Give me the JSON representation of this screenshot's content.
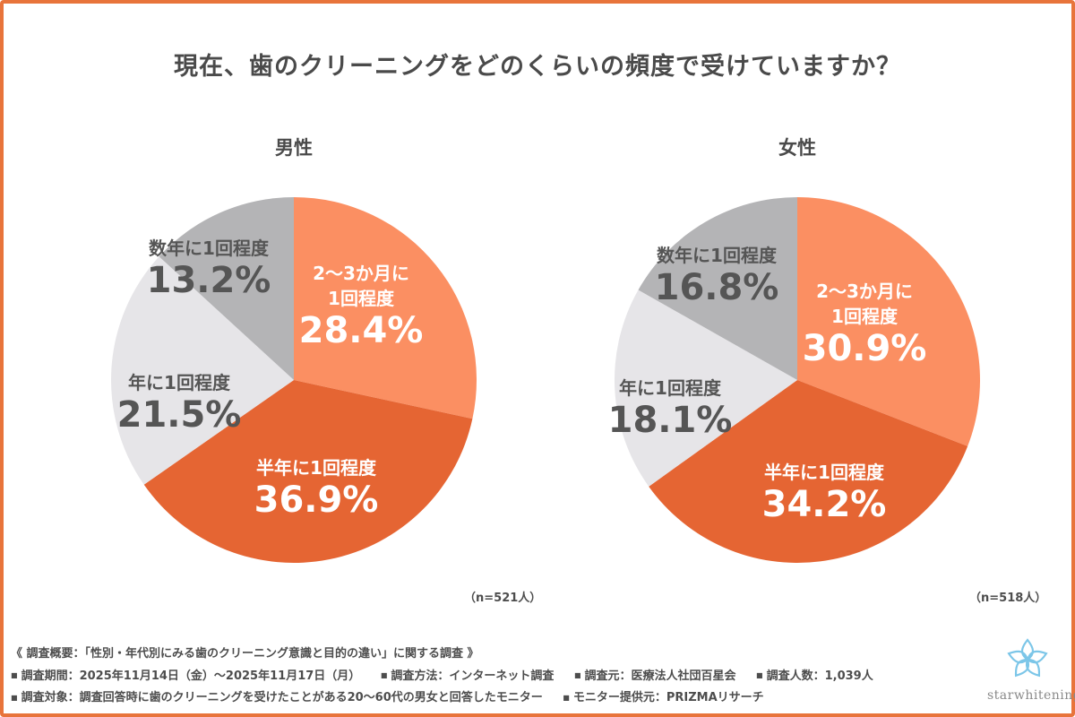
{
  "title": "現在、歯のクリーニングをどのくらいの頻度で受けていますか？",
  "chart_data": [
    {
      "type": "pie",
      "title": "男性",
      "n_label": "（n=521人）",
      "slices": [
        {
          "name": "2〜3か月に1回程度",
          "lines": [
            "2〜3か月に",
            "1回程度"
          ],
          "value": 28.4,
          "label": "28.4%",
          "color": "#fb8f62",
          "text_color": "#ffffff"
        },
        {
          "name": "半年に1回程度",
          "lines": [
            "半年に1回程度"
          ],
          "value": 36.9,
          "label": "36.9%",
          "color": "#e56533",
          "text_color": "#ffffff"
        },
        {
          "name": "年に1回程度",
          "lines": [
            "年に1回程度"
          ],
          "value": 21.5,
          "label": "21.5%",
          "color": "#e6e5e8",
          "text_color": "#555555"
        },
        {
          "name": "数年に1回程度",
          "lines": [
            "数年に1回程度"
          ],
          "value": 13.2,
          "label": "13.2%",
          "color": "#b4b4b6",
          "text_color": "#555555"
        }
      ]
    },
    {
      "type": "pie",
      "title": "女性",
      "n_label": "（n=518人）",
      "slices": [
        {
          "name": "2〜3か月に1回程度",
          "lines": [
            "2〜3か月に",
            "1回程度"
          ],
          "value": 30.9,
          "label": "30.9%",
          "color": "#fb8f62",
          "text_color": "#ffffff"
        },
        {
          "name": "半年に1回程度",
          "lines": [
            "半年に1回程度"
          ],
          "value": 34.2,
          "label": "34.2%",
          "color": "#e56533",
          "text_color": "#ffffff"
        },
        {
          "name": "年に1回程度",
          "lines": [
            "年に1回程度"
          ],
          "value": 18.1,
          "label": "18.1%",
          "color": "#e6e5e8",
          "text_color": "#555555"
        },
        {
          "name": "数年に1回程度",
          "lines": [
            "数年に1回程度"
          ],
          "value": 16.8,
          "label": "16.8%",
          "color": "#b4b4b6",
          "text_color": "#555555"
        }
      ]
    }
  ],
  "notes": {
    "overview": "《 調査概要：「性別・年代別にみる歯のクリーニング意識と目的の違い」に関する調査 》",
    "period": "調査期間：2025年11月14日（金）〜2025年11月17日（月）",
    "method": "調査方法：インターネット調査",
    "source": "調査元：医療法人社団百星会",
    "count": "調査人数：1,039人",
    "target": "調査対象：調査回答時に歯のクリーニングを受けたことがある20〜60代の男女と回答したモニター",
    "provider": "モニター提供元：PRIZMAリサーチ"
  },
  "logo": {
    "text": "starwhitening",
    "icon": "star-flower-icon",
    "color": "#7cc6e8"
  }
}
